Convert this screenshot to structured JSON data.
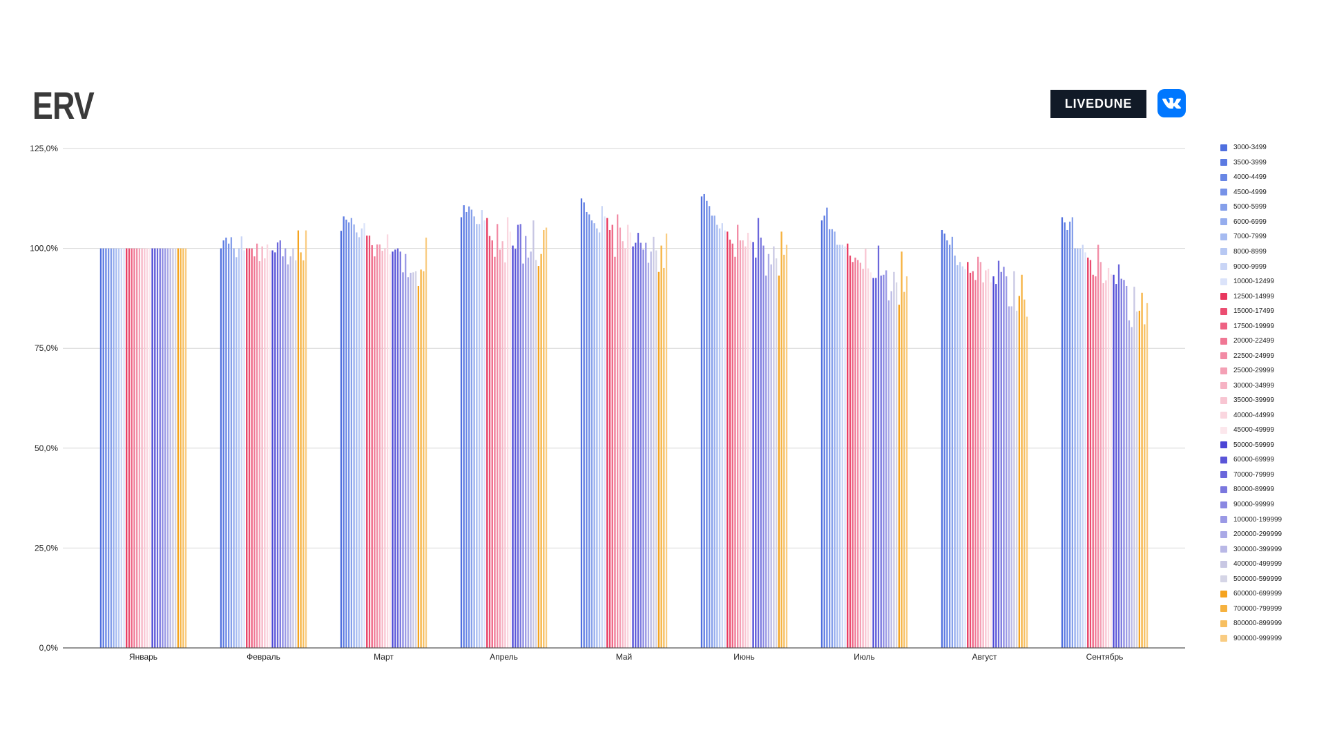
{
  "colors": {
    "title": "#3a3a3a",
    "grid": "#d6d6d6",
    "axis": "#555555",
    "text": "#222222"
  },
  "brand": {
    "livedune_label": "LIVEDUNE",
    "livedune_bg": "#111a27",
    "vk_icon": "vk-logo-icon",
    "vk_color": "#0077ff"
  },
  "chart_data": {
    "type": "bar",
    "title": "ERV",
    "xlabel": "",
    "ylabel": "",
    "ylim": [
      0,
      125
    ],
    "y_tick_values": [
      0,
      25,
      50,
      75,
      100,
      125
    ],
    "y_tick_labels": [
      "0,0%",
      "25,0%",
      "50,0%",
      "75,0%",
      "100,0%",
      "125,0%"
    ],
    "grid": true,
    "legend": "right",
    "categories": [
      "Январь",
      "Февраль",
      "Март",
      "Апрель",
      "Май",
      "Июнь",
      "Июль",
      "Август",
      "Сентябрь"
    ],
    "series": [
      {
        "name": "3000-3499",
        "color": "#4f6fdf",
        "values": [
          100,
          100.0,
          104.4,
          107.8,
          112.5,
          113.0,
          107.0,
          104.6,
          107.8
        ]
      },
      {
        "name": "3500-3999",
        "color": "#5b7ae2",
        "values": [
          100,
          102.0,
          108.0,
          110.8,
          111.5,
          113.6,
          108.2,
          103.7,
          106.5
        ]
      },
      {
        "name": "4000-4499",
        "color": "#6886e5",
        "values": [
          100,
          102.7,
          107.2,
          109.1,
          109.1,
          111.9,
          110.2,
          102.0,
          104.6
        ]
      },
      {
        "name": "4500-4999",
        "color": "#7692e8",
        "values": [
          100,
          101.2,
          106.5,
          110.5,
          108.5,
          110.6,
          104.8,
          100.9,
          106.7
        ]
      },
      {
        "name": "5000-5999",
        "color": "#859fea",
        "values": [
          100,
          102.8,
          107.6,
          109.7,
          107.0,
          108.2,
          104.8,
          102.9,
          107.8
        ]
      },
      {
        "name": "6000-6999",
        "color": "#95adee",
        "values": [
          100,
          100.0,
          106.0,
          108.0,
          106.3,
          108.2,
          104.2,
          98.2,
          100.0
        ]
      },
      {
        "name": "7000-7999",
        "color": "#a6bbf1",
        "values": [
          100,
          97.8,
          104.0,
          106.1,
          105.0,
          105.9,
          100.9,
          95.8,
          100.0
        ]
      },
      {
        "name": "8000-8999",
        "color": "#b7c8f3",
        "values": [
          100,
          100.0,
          102.8,
          106.1,
          104.0,
          105.0,
          100.9,
          96.6,
          100.0
        ]
      },
      {
        "name": "9000-9999",
        "color": "#c9d5f6",
        "values": [
          100,
          103.0,
          105.0,
          109.6,
          110.6,
          106.3,
          100.9,
          95.5,
          100.9
        ]
      },
      {
        "name": "10000-12499",
        "color": "#dbe3fa",
        "values": [
          100,
          99.5,
          106.3,
          107.0,
          108.0,
          104.5,
          100.5,
          94.8,
          99.0
        ]
      },
      {
        "name": "12500-14999",
        "color": "#e8375e",
        "values": [
          100,
          100.0,
          103.2,
          107.6,
          107.6,
          104.2,
          101.2,
          96.6,
          97.7
        ]
      },
      {
        "name": "15000-17499",
        "color": "#eb4d71",
        "values": [
          100,
          100.0,
          103.2,
          103.1,
          104.6,
          102.2,
          98.2,
          93.9,
          97.1
        ]
      },
      {
        "name": "17500-19999",
        "color": "#ee6283",
        "values": [
          100,
          100.0,
          100.8,
          102.0,
          105.9,
          101.2,
          96.6,
          94.3,
          93.4
        ]
      },
      {
        "name": "20000-22499",
        "color": "#f07794",
        "values": [
          100,
          98.0,
          98.0,
          97.9,
          97.9,
          97.9,
          97.7,
          92.1,
          93.0
        ]
      },
      {
        "name": "22500-24999",
        "color": "#f28ba5",
        "values": [
          100,
          101.2,
          101.0,
          106.1,
          108.5,
          105.9,
          97.1,
          97.9,
          100.9
        ]
      },
      {
        "name": "25000-29999",
        "color": "#f4a0b5",
        "values": [
          100,
          96.8,
          101.0,
          99.7,
          105.2,
          102.0,
          96.4,
          96.6,
          96.6
        ]
      },
      {
        "name": "30000-34999",
        "color": "#f6b3c4",
        "values": [
          100,
          100.5,
          99.4,
          101.8,
          101.8,
          102.0,
          94.9,
          91.5,
          91.3
        ]
      },
      {
        "name": "35000-39999",
        "color": "#f8c5d2",
        "values": [
          100,
          97.5,
          100.0,
          96.5,
          100.0,
          100.5,
          99.9,
          94.5,
          92.0
        ]
      },
      {
        "name": "40000-44999",
        "color": "#fad6df",
        "values": [
          100,
          101.0,
          103.5,
          107.8,
          105.9,
          103.9,
          95.0,
          94.9,
          95.1
        ]
      },
      {
        "name": "45000-49999",
        "color": "#fce7ec",
        "values": [
          100,
          99.5,
          98.5,
          104.2,
          104.0,
          102.0,
          94.0,
          91.5,
          93.5
        ]
      },
      {
        "name": "50000-59999",
        "color": "#4b45d5",
        "values": [
          100,
          99.5,
          99.2,
          100.7,
          100.5,
          101.6,
          92.6,
          93.0,
          93.4
        ]
      },
      {
        "name": "60000-69999",
        "color": "#5a55d8",
        "values": [
          100,
          99.0,
          99.7,
          99.9,
          101.4,
          97.7,
          92.6,
          91.1,
          91.1
        ]
      },
      {
        "name": "70000-79999",
        "color": "#6a66db",
        "values": [
          100,
          101.5,
          100.0,
          105.9,
          103.9,
          107.6,
          100.7,
          96.9,
          96.0
        ]
      },
      {
        "name": "80000-89999",
        "color": "#7a77de",
        "values": [
          100,
          102.0,
          99.2,
          106.1,
          101.4,
          102.7,
          93.2,
          94.1,
          92.4
        ]
      },
      {
        "name": "90000-99999",
        "color": "#8a88e2",
        "values": [
          100,
          98.0,
          94.0,
          96.2,
          99.7,
          100.7,
          93.4,
          95.4,
          92.1
        ]
      },
      {
        "name": "100000-199999",
        "color": "#9a99e5",
        "values": [
          100,
          100.0,
          98.6,
          103.1,
          101.4,
          93.2,
          94.5,
          93.0,
          90.6
        ]
      },
      {
        "name": "200000-299999",
        "color": "#aaa9e6",
        "values": [
          100,
          96.0,
          92.8,
          97.7,
          96.4,
          98.6,
          87.0,
          85.5,
          82.0
        ]
      },
      {
        "name": "300000-399999",
        "color": "#b9b8e6",
        "values": [
          100,
          98.0,
          93.9,
          99.2,
          99.2,
          96.0,
          89.3,
          85.5,
          80.3
        ]
      },
      {
        "name": "400000-499999",
        "color": "#c8c7e3",
        "values": [
          100,
          100.0,
          94.0,
          107.0,
          102.9,
          100.5,
          94.1,
          94.3,
          90.4
        ]
      },
      {
        "name": "500000-599999",
        "color": "#d5d5e6",
        "values": [
          100,
          97.0,
          94.3,
          97.1,
          99.5,
          97.5,
          91.5,
          84.4,
          84.2
        ]
      },
      {
        "name": "600000-699999",
        "color": "#f5a31f",
        "values": [
          100,
          104.5,
          90.6,
          95.6,
          94.1,
          93.2,
          85.9,
          88.1,
          84.4
        ]
      },
      {
        "name": "700000-799999",
        "color": "#f6b23f",
        "values": [
          100,
          99.0,
          94.7,
          98.6,
          100.7,
          104.2,
          99.2,
          93.4,
          88.9
        ]
      },
      {
        "name": "800000-899999",
        "color": "#f7bf60",
        "values": [
          100,
          97.0,
          94.3,
          104.6,
          95.1,
          98.4,
          89.1,
          87.2,
          81.0
        ]
      },
      {
        "name": "900000-999999",
        "color": "#f9cc82",
        "values": [
          100,
          104.5,
          102.7,
          105.2,
          103.7,
          100.9,
          93.0,
          82.9,
          86.3
        ]
      }
    ]
  }
}
